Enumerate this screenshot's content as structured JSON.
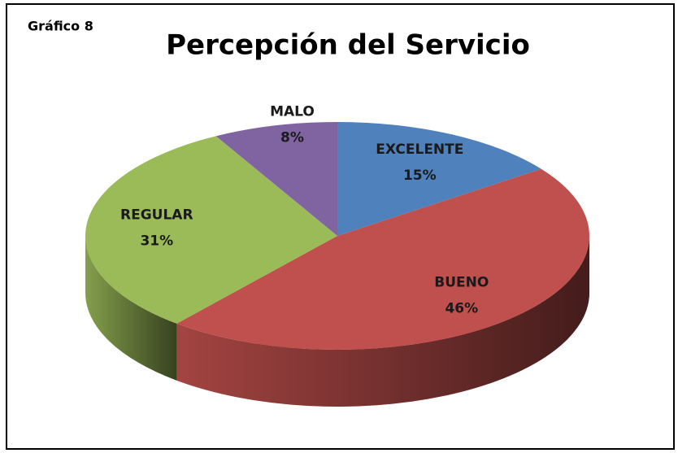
{
  "chart_data": {
    "type": "pie3d",
    "annotation": "Gráfico 8",
    "title": "Percepción del Servicio",
    "categories": [
      "EXCELENTE",
      "BUENO",
      "REGULAR",
      "MALO"
    ],
    "values": [
      15,
      46,
      31,
      8
    ],
    "value_labels": [
      "15%",
      "46%",
      "31%",
      "8%"
    ],
    "colors": [
      "#4f81bd",
      "#c0504d",
      "#9bbb59",
      "#8064a2"
    ]
  }
}
